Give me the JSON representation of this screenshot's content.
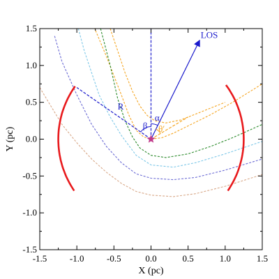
{
  "chart_data": {
    "type": "line",
    "xlabel": "X (pc)",
    "ylabel": "Y (pc)",
    "xlim": [
      -1.5,
      1.5
    ],
    "ylim": [
      -1.5,
      1.5
    ],
    "xticks": [
      "-1.5",
      "-1.0",
      "-0.5",
      "0.0",
      "0.5",
      "1.0",
      "1.5"
    ],
    "yticks": [
      "-1.5",
      "-1.0",
      "-0.5",
      "0.0",
      "0.5",
      "1.0",
      "1.5"
    ],
    "grid": false,
    "star": {
      "x": 0.0,
      "y": 0.0,
      "color": "#c0398a"
    },
    "bow_shocks": [
      {
        "color": "#f5a623",
        "points": [
          [
            -1.5,
            3.0
          ],
          [
            -1.0,
            2.0
          ],
          [
            -0.8,
            1.6
          ],
          [
            -0.6,
            1.12
          ],
          [
            -0.4,
            0.6
          ],
          [
            -0.3,
            0.33
          ],
          [
            -0.2,
            0.12
          ],
          [
            -0.1,
            0.03
          ],
          [
            0.0,
            0.0
          ],
          [
            0.15,
            0.02
          ],
          [
            0.3,
            0.08
          ],
          [
            0.5,
            0.18
          ],
          [
            0.8,
            0.33
          ],
          [
            1.1,
            0.5
          ],
          [
            1.5,
            0.75
          ]
        ]
      },
      {
        "color": "#f5a623",
        "points": [
          [
            -0.55,
            1.5
          ],
          [
            -0.45,
            1.2
          ],
          [
            -0.35,
            0.9
          ],
          [
            -0.25,
            0.65
          ],
          [
            -0.15,
            0.45
          ],
          [
            -0.05,
            0.32
          ],
          [
            0.05,
            0.25
          ],
          [
            0.2,
            0.22
          ],
          [
            0.4,
            0.26
          ],
          [
            0.6,
            0.34
          ],
          [
            0.8,
            0.42
          ],
          [
            1.0,
            0.5
          ]
        ]
      },
      {
        "color": "#2a8a2a",
        "points": [
          [
            -0.68,
            1.5
          ],
          [
            -0.55,
            1.0
          ],
          [
            -0.45,
            0.55
          ],
          [
            -0.35,
            0.25
          ],
          [
            -0.25,
            0.03
          ],
          [
            -0.15,
            -0.12
          ],
          [
            0.0,
            -0.22
          ],
          [
            0.2,
            -0.25
          ],
          [
            0.5,
            -0.2
          ],
          [
            0.8,
            -0.1
          ],
          [
            1.1,
            0.02
          ],
          [
            1.5,
            0.2
          ]
        ]
      },
      {
        "color": "#7ec8e8",
        "points": [
          [
            -0.98,
            1.5
          ],
          [
            -0.9,
            1.2
          ],
          [
            -0.8,
            0.9
          ],
          [
            -0.7,
            0.6
          ],
          [
            -0.55,
            0.3
          ],
          [
            -0.4,
            0.05
          ],
          [
            -0.2,
            -0.22
          ],
          [
            0.0,
            -0.35
          ],
          [
            0.3,
            -0.38
          ],
          [
            0.6,
            -0.32
          ],
          [
            1.0,
            -0.2
          ],
          [
            1.5,
            -0.03
          ]
        ]
      },
      {
        "color": "#6a6ad4",
        "points": [
          [
            -1.3,
            1.4
          ],
          [
            -1.2,
            1.05
          ],
          [
            -1.0,
            0.6
          ],
          [
            -0.8,
            0.2
          ],
          [
            -0.6,
            -0.1
          ],
          [
            -0.4,
            -0.32
          ],
          [
            -0.2,
            -0.47
          ],
          [
            0.0,
            -0.53
          ],
          [
            0.3,
            -0.55
          ],
          [
            0.6,
            -0.52
          ],
          [
            1.0,
            -0.42
          ],
          [
            1.5,
            -0.27
          ]
        ]
      },
      {
        "color": "#d8a888",
        "points": [
          [
            -1.5,
            0.7
          ],
          [
            -1.35,
            0.45
          ],
          [
            -1.2,
            0.2
          ],
          [
            -1.0,
            -0.05
          ],
          [
            -0.8,
            -0.27
          ],
          [
            -0.6,
            -0.45
          ],
          [
            -0.4,
            -0.6
          ],
          [
            -0.2,
            -0.71
          ],
          [
            0.0,
            -0.76
          ],
          [
            0.3,
            -0.78
          ],
          [
            0.6,
            -0.74
          ],
          [
            1.0,
            -0.64
          ],
          [
            1.5,
            -0.48
          ]
        ]
      }
    ],
    "red_arcs": [
      {
        "color": "#e8191c",
        "center": [
          0.0,
          0.0
        ],
        "radius": 1.25,
        "from_deg": 145,
        "to_deg": 214
      },
      {
        "color": "#e8191c",
        "center": [
          0.0,
          0.0
        ],
        "radius": 1.25,
        "from_deg": -34,
        "to_deg": 36
      }
    ],
    "geometry": {
      "color": "#1a1acc",
      "vertical_line": [
        [
          0.0,
          0.0
        ],
        [
          0.0,
          1.5
        ]
      ],
      "los_line": [
        [
          0.0,
          0.0
        ],
        [
          0.65,
          1.33
        ]
      ],
      "r_line": [
        [
          0.0,
          0.0
        ],
        [
          -1.0,
          0.7
        ]
      ],
      "theta_line_color": "#f5a623",
      "theta_line": [
        [
          0.0,
          0.0
        ],
        [
          0.5,
          0.3
        ]
      ]
    },
    "annotations": [
      {
        "text": "LOS",
        "x": 0.67,
        "y": 1.37,
        "color": "#1a1acc"
      },
      {
        "text": "R",
        "x": -0.45,
        "y": 0.4,
        "color": "#1a1acc"
      },
      {
        "text": "α",
        "x": 0.05,
        "y": 0.25,
        "color": "#1a1acc"
      },
      {
        "text": "β",
        "x": -0.11,
        "y": 0.14,
        "color": "#1a1acc"
      },
      {
        "text": "θ′",
        "x": 0.1,
        "y": 0.1,
        "color": "#f5a623"
      }
    ]
  }
}
